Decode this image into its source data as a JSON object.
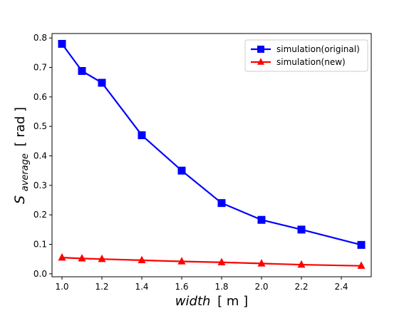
{
  "chart_data": {
    "type": "line",
    "title": "",
    "xlabel": "width [ m ]",
    "ylabel": "S_average [ rad ]",
    "xlabel_parts": {
      "italic": "width",
      "unit": "[ m ]"
    },
    "ylabel_parts": {
      "symbol": "S",
      "subscript": "average",
      "unit": "[ rad ]"
    },
    "xlim": [
      0.95,
      2.55
    ],
    "ylim": [
      -0.01,
      0.815
    ],
    "xticks": [
      "1.0",
      "1.2",
      "1.4",
      "1.6",
      "1.8",
      "2.0",
      "2.2",
      "2.4"
    ],
    "yticks": [
      "0.0",
      "0.1",
      "0.2",
      "0.3",
      "0.4",
      "0.5",
      "0.6",
      "0.7",
      "0.8"
    ],
    "grid": false,
    "legend_position": "top-right",
    "series": [
      {
        "name": "simulation(original)",
        "color": "#0000ff",
        "marker": "square",
        "x": [
          1.0,
          1.1,
          1.2,
          1.4,
          1.6,
          1.8,
          2.0,
          2.2,
          2.5
        ],
        "y": [
          0.78,
          0.688,
          0.648,
          0.47,
          0.35,
          0.24,
          0.183,
          0.15,
          0.098
        ]
      },
      {
        "name": "simulation(new)",
        "color": "#ff0000",
        "marker": "triangle",
        "x": [
          1.0,
          1.1,
          1.2,
          1.4,
          1.6,
          1.8,
          2.0,
          2.2,
          2.5
        ],
        "y": [
          0.055,
          0.052,
          0.05,
          0.046,
          0.042,
          0.039,
          0.035,
          0.031,
          0.027
        ]
      }
    ]
  }
}
